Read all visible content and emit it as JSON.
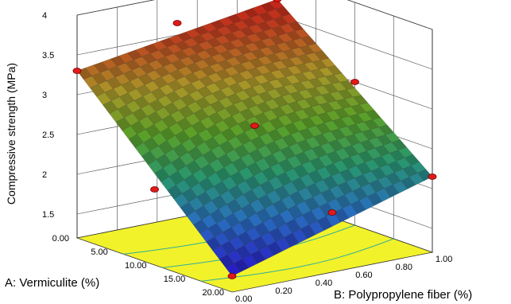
{
  "chart_data": {
    "type": "surface3d",
    "title": "",
    "zlabel": "Compressive strength (MPa)",
    "xlabel": "A: Vermiculite (%)",
    "ylabel": "B: Polypropylene fiber (%)",
    "z_ticks": [
      "1.5",
      "2",
      "2.5",
      "3",
      "3.5",
      "4"
    ],
    "a_ticks": [
      "0.00",
      "5.00",
      "10.00",
      "15.00",
      "20.00"
    ],
    "b_ticks": [
      "0.00",
      "0.20",
      "0.40",
      "0.60",
      "0.80",
      "1.00"
    ],
    "zlim": [
      1.2,
      4.0
    ],
    "alim": [
      0,
      20
    ],
    "blim": [
      0,
      1
    ],
    "surface_corners": [
      {
        "a": 0,
        "b": 0,
        "z": 3.3
      },
      {
        "a": 0,
        "b": 1,
        "z": 3.7
      },
      {
        "a": 20,
        "b": 1,
        "z": 2.15
      },
      {
        "a": 20,
        "b": 0,
        "z": 1.4
      }
    ],
    "design_points": [
      {
        "a": 0,
        "b": 0,
        "z": 3.3
      },
      {
        "a": 0,
        "b": 0.5,
        "z": 3.65
      },
      {
        "a": 0,
        "b": 1,
        "z": 3.7
      },
      {
        "a": 10,
        "b": 1,
        "z": 3.0
      },
      {
        "a": 10,
        "b": 0.5,
        "z": 2.7
      },
      {
        "a": 10,
        "b": 0,
        "z": 2.15
      },
      {
        "a": 20,
        "b": 0,
        "z": 1.4
      },
      {
        "a": 20,
        "b": 0.5,
        "z": 1.95
      },
      {
        "a": 20,
        "b": 1,
        "z": 2.15
      }
    ],
    "floor_color": "#f2f22a",
    "contour_color": "#2fb09a",
    "point_color": "#e01a1a",
    "grid": true
  }
}
